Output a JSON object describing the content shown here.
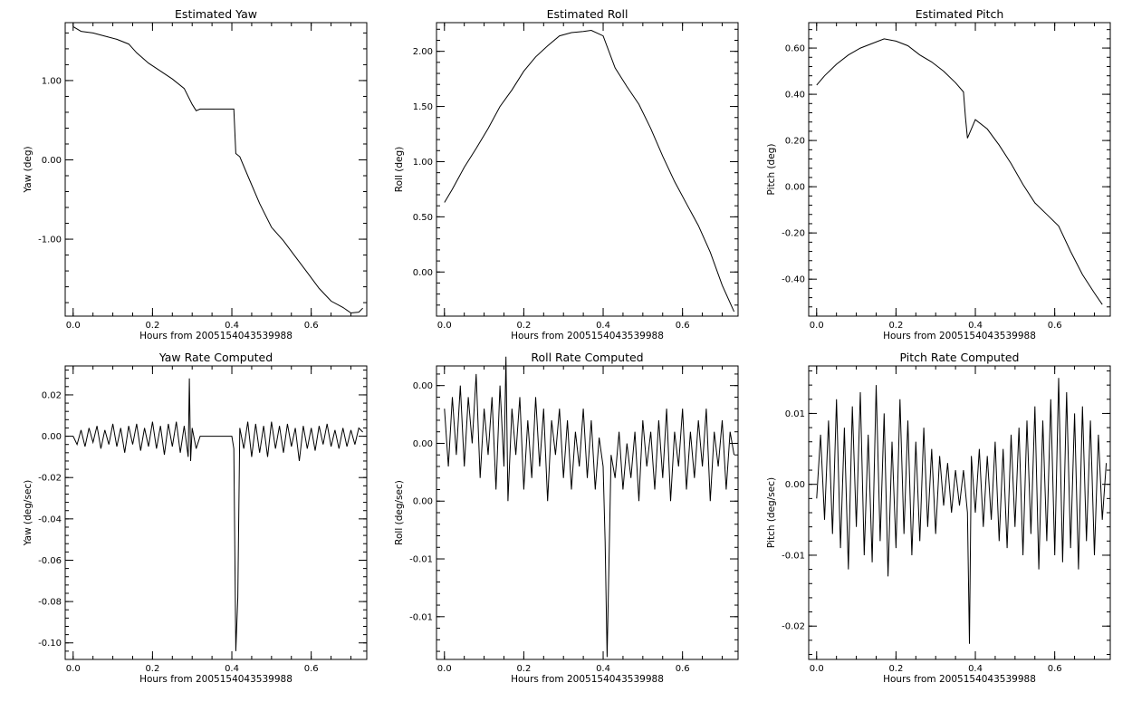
{
  "chart_data": [
    {
      "id": "yaw",
      "type": "line",
      "title": "Estimated Yaw",
      "xlabel": "Hours from 2005154043539988",
      "ylabel": "Yaw (deg)",
      "xlim": [
        -0.02,
        0.74
      ],
      "ylim": [
        -1.97,
        1.73
      ],
      "xticks": [
        {
          "v": 0.0,
          "label": "0.0"
        },
        {
          "v": 0.2,
          "label": "0.2"
        },
        {
          "v": 0.4,
          "label": "0.4"
        },
        {
          "v": 0.6,
          "label": "0.6"
        }
      ],
      "yticks": [
        {
          "v": 1.0,
          "label": "1.00"
        },
        {
          "v": 0.0,
          "label": "0.00"
        },
        {
          "v": -1.0,
          "label": "-1.00"
        }
      ],
      "x": [
        0.0,
        0.02,
        0.05,
        0.08,
        0.11,
        0.14,
        0.16,
        0.19,
        0.22,
        0.25,
        0.28,
        0.3,
        0.31,
        0.32,
        0.36,
        0.405,
        0.41,
        0.42,
        0.44,
        0.47,
        0.5,
        0.53,
        0.56,
        0.59,
        0.62,
        0.65,
        0.68,
        0.7,
        0.72,
        0.73
      ],
      "y": [
        1.68,
        1.62,
        1.6,
        1.56,
        1.52,
        1.46,
        1.35,
        1.22,
        1.12,
        1.02,
        0.9,
        0.7,
        0.62,
        0.64,
        0.64,
        0.64,
        0.08,
        0.04,
        -0.2,
        -0.55,
        -0.85,
        -1.02,
        -1.22,
        -1.42,
        -1.62,
        -1.78,
        -1.86,
        -1.93,
        -1.92,
        -1.87
      ]
    },
    {
      "id": "roll",
      "type": "line",
      "title": "Estimated Roll",
      "xlabel": "Hours from 2005154043539988",
      "ylabel": "Roll (deg)",
      "xlim": [
        -0.02,
        0.74
      ],
      "ylim": [
        -0.4,
        2.26
      ],
      "xticks": [
        {
          "v": 0.0,
          "label": "0.0"
        },
        {
          "v": 0.2,
          "label": "0.2"
        },
        {
          "v": 0.4,
          "label": "0.4"
        },
        {
          "v": 0.6,
          "label": "0.6"
        }
      ],
      "yticks": [
        {
          "v": 2.0,
          "label": "2.00"
        },
        {
          "v": 1.5,
          "label": "1.50"
        },
        {
          "v": 1.0,
          "label": "1.00"
        },
        {
          "v": 0.5,
          "label": "0.50"
        },
        {
          "v": 0.0,
          "label": "0.00"
        }
      ],
      "x": [
        0.0,
        0.02,
        0.05,
        0.08,
        0.11,
        0.14,
        0.17,
        0.2,
        0.23,
        0.26,
        0.29,
        0.32,
        0.35,
        0.37,
        0.4,
        0.43,
        0.46,
        0.49,
        0.52,
        0.55,
        0.58,
        0.61,
        0.64,
        0.67,
        0.7,
        0.73
      ],
      "y": [
        0.63,
        0.75,
        0.95,
        1.12,
        1.3,
        1.5,
        1.65,
        1.82,
        1.95,
        2.05,
        2.14,
        2.17,
        2.18,
        2.19,
        2.14,
        1.85,
        1.68,
        1.52,
        1.3,
        1.05,
        0.82,
        0.62,
        0.42,
        0.18,
        -0.12,
        -0.36
      ]
    },
    {
      "id": "pitch",
      "type": "line",
      "title": "Estimated Pitch",
      "xlabel": "Hours from 2005154043539988",
      "ylabel": "Pitch (deg)",
      "xlim": [
        -0.02,
        0.74
      ],
      "ylim": [
        -0.56,
        0.71
      ],
      "xticks": [
        {
          "v": 0.0,
          "label": "0.0"
        },
        {
          "v": 0.2,
          "label": "0.2"
        },
        {
          "v": 0.4,
          "label": "0.4"
        },
        {
          "v": 0.6,
          "label": "0.6"
        }
      ],
      "yticks": [
        {
          "v": 0.6,
          "label": "0.60"
        },
        {
          "v": 0.4,
          "label": "0.40"
        },
        {
          "v": 0.2,
          "label": "0.20"
        },
        {
          "v": 0.0,
          "label": "0.00"
        },
        {
          "v": -0.2,
          "label": "-0.20"
        },
        {
          "v": -0.4,
          "label": "-0.40"
        }
      ],
      "x": [
        0.0,
        0.02,
        0.05,
        0.08,
        0.11,
        0.14,
        0.17,
        0.2,
        0.23,
        0.26,
        0.29,
        0.32,
        0.35,
        0.37,
        0.375,
        0.38,
        0.4,
        0.43,
        0.46,
        0.49,
        0.52,
        0.55,
        0.58,
        0.61,
        0.64,
        0.67,
        0.7,
        0.72
      ],
      "y": [
        0.44,
        0.48,
        0.53,
        0.57,
        0.6,
        0.62,
        0.64,
        0.63,
        0.61,
        0.57,
        0.54,
        0.5,
        0.45,
        0.41,
        0.3,
        0.21,
        0.29,
        0.25,
        0.18,
        0.1,
        0.01,
        -0.07,
        -0.12,
        -0.17,
        -0.28,
        -0.38,
        -0.46,
        -0.51
      ]
    },
    {
      "id": "yawrate",
      "type": "line",
      "title": "Yaw Rate Computed",
      "xlabel": "Hours from 2005154043539988",
      "ylabel": "Yaw (deg/sec)",
      "xlim": [
        -0.02,
        0.74
      ],
      "ylim": [
        -0.108,
        0.034
      ],
      "xticks": [
        {
          "v": 0.0,
          "label": "0.0"
        },
        {
          "v": 0.2,
          "label": "0.2"
        },
        {
          "v": 0.4,
          "label": "0.4"
        },
        {
          "v": 0.6,
          "label": "0.6"
        }
      ],
      "yticks": [
        {
          "v": 0.02,
          "label": "0.02"
        },
        {
          "v": 0.0,
          "label": "0.00"
        },
        {
          "v": -0.02,
          "label": "-0.02"
        },
        {
          "v": -0.04,
          "label": "-0.04"
        },
        {
          "v": -0.06,
          "label": "-0.06"
        },
        {
          "v": -0.08,
          "label": "-0.08"
        },
        {
          "v": -0.1,
          "label": "-0.10"
        }
      ],
      "x": [
        0.0,
        0.01,
        0.02,
        0.03,
        0.04,
        0.05,
        0.06,
        0.07,
        0.08,
        0.09,
        0.1,
        0.11,
        0.12,
        0.13,
        0.14,
        0.15,
        0.16,
        0.17,
        0.18,
        0.19,
        0.2,
        0.21,
        0.22,
        0.23,
        0.24,
        0.25,
        0.26,
        0.27,
        0.28,
        0.29,
        0.293,
        0.296,
        0.3,
        0.31,
        0.32,
        0.36,
        0.4,
        0.405,
        0.41,
        0.415,
        0.42,
        0.43,
        0.44,
        0.45,
        0.46,
        0.47,
        0.48,
        0.49,
        0.5,
        0.51,
        0.52,
        0.53,
        0.54,
        0.55,
        0.56,
        0.57,
        0.58,
        0.59,
        0.6,
        0.61,
        0.62,
        0.63,
        0.64,
        0.65,
        0.66,
        0.67,
        0.68,
        0.69,
        0.7,
        0.71,
        0.72,
        0.73
      ],
      "y": [
        0.0,
        -0.004,
        0.003,
        -0.005,
        0.004,
        -0.003,
        0.005,
        -0.006,
        0.003,
        -0.004,
        0.006,
        -0.005,
        0.004,
        -0.008,
        0.005,
        -0.004,
        0.006,
        -0.007,
        0.004,
        -0.005,
        0.007,
        -0.006,
        0.005,
        -0.009,
        0.006,
        -0.005,
        0.007,
        -0.008,
        0.005,
        -0.01,
        0.028,
        -0.012,
        0.004,
        -0.006,
        0.0,
        0.0,
        0.0,
        -0.006,
        -0.104,
        -0.078,
        0.004,
        -0.006,
        0.007,
        -0.01,
        0.006,
        -0.008,
        0.005,
        -0.01,
        0.007,
        -0.006,
        0.005,
        -0.008,
        0.006,
        -0.005,
        0.004,
        -0.012,
        0.005,
        -0.006,
        0.004,
        -0.007,
        0.005,
        -0.004,
        0.006,
        -0.005,
        0.003,
        -0.006,
        0.004,
        -0.005,
        0.003,
        -0.004,
        0.004,
        0.002
      ]
    },
    {
      "id": "rollrate",
      "type": "line",
      "title": "Roll Rate Computed",
      "xlabel": "Hours from 2005154043539988",
      "ylabel": "Roll (deg/sec)",
      "xlim": [
        -0.02,
        0.74
      ],
      "ylim": [
        -0.0187,
        0.0067
      ],
      "xticks": [
        {
          "v": 0.0,
          "label": "0.0"
        },
        {
          "v": 0.2,
          "label": "0.2"
        },
        {
          "v": 0.4,
          "label": "0.4"
        },
        {
          "v": 0.6,
          "label": "0.6"
        }
      ],
      "yticks": [
        {
          "v": 0.005,
          "label": "0.00"
        },
        {
          "v": 0.0,
          "label": "0.00"
        },
        {
          "v": -0.005,
          "label": "0.00"
        },
        {
          "v": -0.01,
          "label": "-0.01"
        },
        {
          "v": -0.015,
          "label": "-0.01"
        }
      ],
      "x": [
        0.0,
        0.01,
        0.02,
        0.03,
        0.04,
        0.05,
        0.06,
        0.07,
        0.08,
        0.09,
        0.1,
        0.11,
        0.12,
        0.13,
        0.14,
        0.15,
        0.155,
        0.16,
        0.17,
        0.18,
        0.19,
        0.2,
        0.21,
        0.22,
        0.23,
        0.24,
        0.25,
        0.26,
        0.27,
        0.28,
        0.29,
        0.3,
        0.31,
        0.32,
        0.33,
        0.34,
        0.35,
        0.36,
        0.37,
        0.38,
        0.39,
        0.4,
        0.405,
        0.41,
        0.42,
        0.43,
        0.44,
        0.45,
        0.46,
        0.47,
        0.48,
        0.49,
        0.5,
        0.51,
        0.52,
        0.53,
        0.54,
        0.55,
        0.56,
        0.57,
        0.58,
        0.59,
        0.6,
        0.61,
        0.62,
        0.63,
        0.64,
        0.65,
        0.66,
        0.67,
        0.68,
        0.69,
        0.7,
        0.71,
        0.72,
        0.73
      ],
      "y": [
        0.003,
        -0.002,
        0.004,
        -0.001,
        0.005,
        -0.002,
        0.004,
        0.0,
        0.006,
        -0.003,
        0.003,
        -0.001,
        0.004,
        -0.004,
        0.005,
        -0.002,
        0.0075,
        -0.005,
        0.003,
        -0.001,
        0.004,
        -0.004,
        0.002,
        -0.003,
        0.004,
        -0.002,
        0.003,
        -0.005,
        0.002,
        -0.001,
        0.003,
        -0.003,
        0.002,
        -0.004,
        0.001,
        -0.002,
        0.003,
        -0.003,
        0.002,
        -0.004,
        0.0005,
        -0.002,
        -0.0085,
        -0.0185,
        -0.001,
        -0.003,
        0.001,
        -0.004,
        0.0,
        -0.003,
        0.001,
        -0.005,
        0.002,
        -0.002,
        0.001,
        -0.004,
        0.002,
        -0.003,
        0.003,
        -0.005,
        0.001,
        -0.002,
        0.003,
        -0.004,
        0.001,
        -0.003,
        0.002,
        -0.002,
        0.003,
        -0.005,
        0.001,
        -0.002,
        0.002,
        -0.004,
        0.001,
        -0.001
      ]
    },
    {
      "id": "pitchrate",
      "type": "line",
      "title": "Pitch Rate Computed",
      "xlabel": "Hours from 2005154043539988",
      "ylabel": "Pitch (deg/sec)",
      "xlim": [
        -0.02,
        0.74
      ],
      "ylim": [
        -0.0247,
        0.0167
      ],
      "xticks": [
        {
          "v": 0.0,
          "label": "0.0"
        },
        {
          "v": 0.2,
          "label": "0.2"
        },
        {
          "v": 0.4,
          "label": "0.4"
        },
        {
          "v": 0.6,
          "label": "0.6"
        }
      ],
      "yticks": [
        {
          "v": 0.01,
          "label": "0.01"
        },
        {
          "v": 0.0,
          "label": "0.00"
        },
        {
          "v": -0.01,
          "label": "-0.01"
        },
        {
          "v": -0.02,
          "label": "-0.02"
        }
      ],
      "x": [
        0.0,
        0.01,
        0.02,
        0.03,
        0.04,
        0.05,
        0.06,
        0.07,
        0.08,
        0.09,
        0.1,
        0.11,
        0.12,
        0.13,
        0.14,
        0.15,
        0.16,
        0.17,
        0.18,
        0.19,
        0.2,
        0.21,
        0.22,
        0.23,
        0.24,
        0.25,
        0.26,
        0.27,
        0.28,
        0.29,
        0.3,
        0.31,
        0.32,
        0.33,
        0.34,
        0.35,
        0.36,
        0.37,
        0.38,
        0.385,
        0.39,
        0.4,
        0.41,
        0.42,
        0.43,
        0.44,
        0.45,
        0.46,
        0.47,
        0.48,
        0.49,
        0.5,
        0.51,
        0.52,
        0.53,
        0.54,
        0.55,
        0.56,
        0.57,
        0.58,
        0.59,
        0.6,
        0.61,
        0.62,
        0.63,
        0.64,
        0.65,
        0.66,
        0.67,
        0.68,
        0.69,
        0.7,
        0.71,
        0.72,
        0.73
      ],
      "y": [
        -0.002,
        0.007,
        -0.005,
        0.009,
        -0.007,
        0.012,
        -0.009,
        0.008,
        -0.012,
        0.011,
        -0.006,
        0.013,
        -0.01,
        0.007,
        -0.011,
        0.014,
        -0.008,
        0.01,
        -0.013,
        0.006,
        -0.009,
        0.012,
        -0.007,
        0.009,
        -0.01,
        0.006,
        -0.008,
        0.008,
        -0.006,
        0.005,
        -0.007,
        0.004,
        -0.003,
        0.003,
        -0.004,
        0.002,
        -0.003,
        0.002,
        -0.004,
        -0.0225,
        0.004,
        -0.004,
        0.005,
        -0.006,
        0.004,
        -0.005,
        0.006,
        -0.008,
        0.005,
        -0.009,
        0.007,
        -0.006,
        0.008,
        -0.01,
        0.009,
        -0.007,
        0.011,
        -0.012,
        0.009,
        -0.008,
        0.012,
        -0.01,
        0.015,
        -0.011,
        0.013,
        -0.009,
        0.01,
        -0.012,
        0.011,
        -0.008,
        0.009,
        -0.01,
        0.007,
        -0.005,
        0.003
      ]
    }
  ]
}
